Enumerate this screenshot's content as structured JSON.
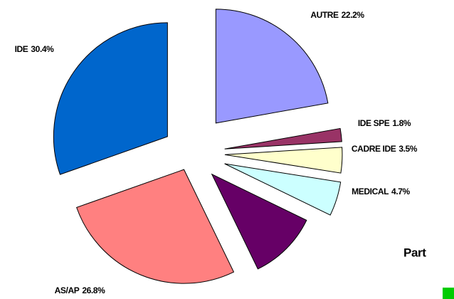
{
  "chart_data": {
    "type": "pie",
    "categories": [
      "AUTRE",
      "IDE SPE",
      "CADRE IDE",
      "MEDICAL",
      null,
      "AS/AP",
      "IDE"
    ],
    "values": [
      22.2,
      1.8,
      3.5,
      4.7,
      10.6,
      26.8,
      30.4
    ],
    "value_labels": [
      "22.2%",
      "1.8%",
      "3.5%",
      "4.7%",
      null,
      "26.8%",
      "30.4%"
    ],
    "colors": [
      "#9999ff",
      "#993366",
      "#ffffcc",
      "#ccffff",
      "#660066",
      "#ff8080",
      "#0066cc"
    ],
    "annotation": "Part"
  }
}
